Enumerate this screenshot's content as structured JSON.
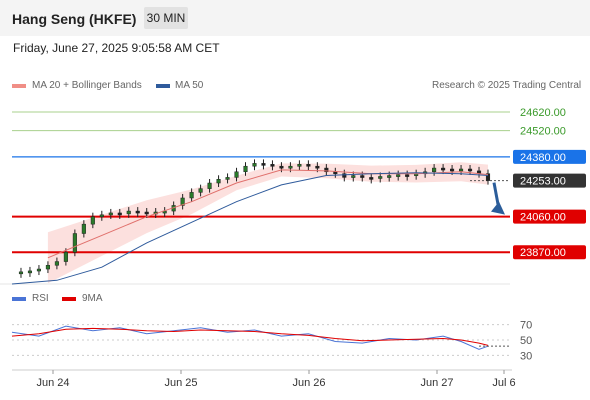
{
  "header": {
    "title": "Hang Seng (HKFE)",
    "timeframe": "30 MIN"
  },
  "datetime": "Friday, June 27, 2025 9:05:58 AM CET",
  "legend": {
    "ma20": "MA 20 + Bollinger Bands",
    "ma50": "MA 50",
    "credit": "Research © 2025 Trading Central"
  },
  "rsi_legend": {
    "rsi": "RSI",
    "ma": "9MA"
  },
  "colors": {
    "ma20": "#e0706c",
    "ma50": "#2f5b9c",
    "band": "#fbd5d3",
    "resistance": "#a8d08d",
    "pivot": "#1a73e8",
    "support": "#e00000",
    "current": "#333333",
    "arrow": "#2b5d9a",
    "candle": "#2a7a2a",
    "rsi": "#4a74d6",
    "rsi_ma": "#e00000"
  },
  "chart_data": [
    {
      "type": "line",
      "title": "Hang Seng (HKFE)",
      "xlabel": "",
      "ylabel": "",
      "x_ticks": [
        "Jun 24",
        "Jun 25",
        "Jun 26",
        "Jun 27",
        "Jul 6"
      ],
      "ylim": [
        23700,
        24700
      ],
      "series": [
        {
          "name": "price",
          "points": [
            [
              0,
              23760
            ],
            [
              2,
              23765
            ],
            [
              4,
              23770
            ],
            [
              6,
              23780
            ],
            [
              8,
              23800
            ],
            [
              10,
              23820
            ],
            [
              12,
              23870
            ],
            [
              14,
              23970
            ],
            [
              16,
              24020
            ],
            [
              18,
              24060
            ],
            [
              20,
              24070
            ],
            [
              22,
              24080
            ],
            [
              24,
              24075
            ],
            [
              26,
              24090
            ],
            [
              28,
              24085
            ],
            [
              30,
              24080
            ],
            [
              32,
              24085
            ],
            [
              34,
              24090
            ],
            [
              36,
              24120
            ],
            [
              38,
              24160
            ],
            [
              40,
              24190
            ],
            [
              42,
              24210
            ],
            [
              44,
              24240
            ],
            [
              46,
              24260
            ],
            [
              48,
              24270
            ],
            [
              50,
              24300
            ],
            [
              52,
              24330
            ],
            [
              54,
              24345
            ],
            [
              56,
              24340
            ],
            [
              58,
              24330
            ],
            [
              60,
              24320
            ],
            [
              62,
              24330
            ],
            [
              64,
              24340
            ],
            [
              66,
              24330
            ],
            [
              68,
              24320
            ],
            [
              70,
              24300
            ],
            [
              72,
              24290
            ],
            [
              74,
              24270
            ],
            [
              76,
              24280
            ],
            [
              78,
              24270
            ],
            [
              80,
              24265
            ],
            [
              82,
              24275
            ],
            [
              84,
              24280
            ],
            [
              86,
              24285
            ],
            [
              88,
              24280
            ],
            [
              90,
              24290
            ],
            [
              92,
              24300
            ],
            [
              94,
              24320
            ],
            [
              96,
              24315
            ],
            [
              98,
              24310
            ],
            [
              100,
              24315
            ],
            [
              102,
              24305
            ],
            [
              104,
              24290
            ],
            [
              106,
              24253
            ]
          ]
        },
        {
          "name": "MA 20",
          "points": [
            [
              8,
              23840
            ],
            [
              20,
              23960
            ],
            [
              30,
              24060
            ],
            [
              40,
              24140
            ],
            [
              50,
              24240
            ],
            [
              60,
              24310
            ],
            [
              70,
              24305
            ],
            [
              80,
              24290
            ],
            [
              90,
              24290
            ],
            [
              100,
              24300
            ],
            [
              106,
              24285
            ]
          ]
        },
        {
          "name": "MA 50",
          "points": [
            [
              0,
              23700
            ],
            [
              10,
              23720
            ],
            [
              20,
              23790
            ],
            [
              30,
              23920
            ],
            [
              40,
              24030
            ],
            [
              50,
              24140
            ],
            [
              60,
              24230
            ],
            [
              70,
              24280
            ],
            [
              80,
              24290
            ],
            [
              90,
              24295
            ],
            [
              100,
              24290
            ],
            [
              106,
              24280
            ]
          ]
        }
      ],
      "levels": [
        {
          "label": "24620.00",
          "value": 24620,
          "kind": "resistance"
        },
        {
          "label": "24520.00",
          "value": 24520,
          "kind": "resistance"
        },
        {
          "label": "24380.00",
          "value": 24380,
          "kind": "pivot"
        },
        {
          "label": "24253.00",
          "value": 24253,
          "kind": "current"
        },
        {
          "label": "24060.00",
          "value": 24060,
          "kind": "support"
        },
        {
          "label": "23870.00",
          "value": 23870,
          "kind": "support"
        }
      ]
    },
    {
      "type": "line",
      "title": "RSI",
      "y_ticks": [
        "70",
        "50",
        "30"
      ],
      "ylim": [
        15,
        85
      ],
      "series": [
        {
          "name": "RSI",
          "points": [
            [
              0,
              60
            ],
            [
              6,
              55
            ],
            [
              12,
              68
            ],
            [
              18,
              62
            ],
            [
              24,
              66
            ],
            [
              30,
              58
            ],
            [
              36,
              62
            ],
            [
              42,
              66
            ],
            [
              48,
              60
            ],
            [
              54,
              63
            ],
            [
              60,
              55
            ],
            [
              66,
              58
            ],
            [
              72,
              48
            ],
            [
              78,
              46
            ],
            [
              84,
              52
            ],
            [
              90,
              50
            ],
            [
              96,
              55
            ],
            [
              100,
              48
            ],
            [
              104,
              38
            ],
            [
              106,
              42
            ]
          ]
        },
        {
          "name": "9MA",
          "points": [
            [
              0,
              55
            ],
            [
              6,
              58
            ],
            [
              12,
              64
            ],
            [
              18,
              65
            ],
            [
              24,
              64
            ],
            [
              30,
              62
            ],
            [
              36,
              61
            ],
            [
              42,
              63
            ],
            [
              48,
              62
            ],
            [
              54,
              61
            ],
            [
              60,
              58
            ],
            [
              66,
              56
            ],
            [
              72,
              52
            ],
            [
              78,
              49
            ],
            [
              84,
              50
            ],
            [
              90,
              51
            ],
            [
              96,
              52
            ],
            [
              100,
              50
            ],
            [
              104,
              46
            ],
            [
              106,
              43
            ]
          ]
        }
      ]
    }
  ]
}
